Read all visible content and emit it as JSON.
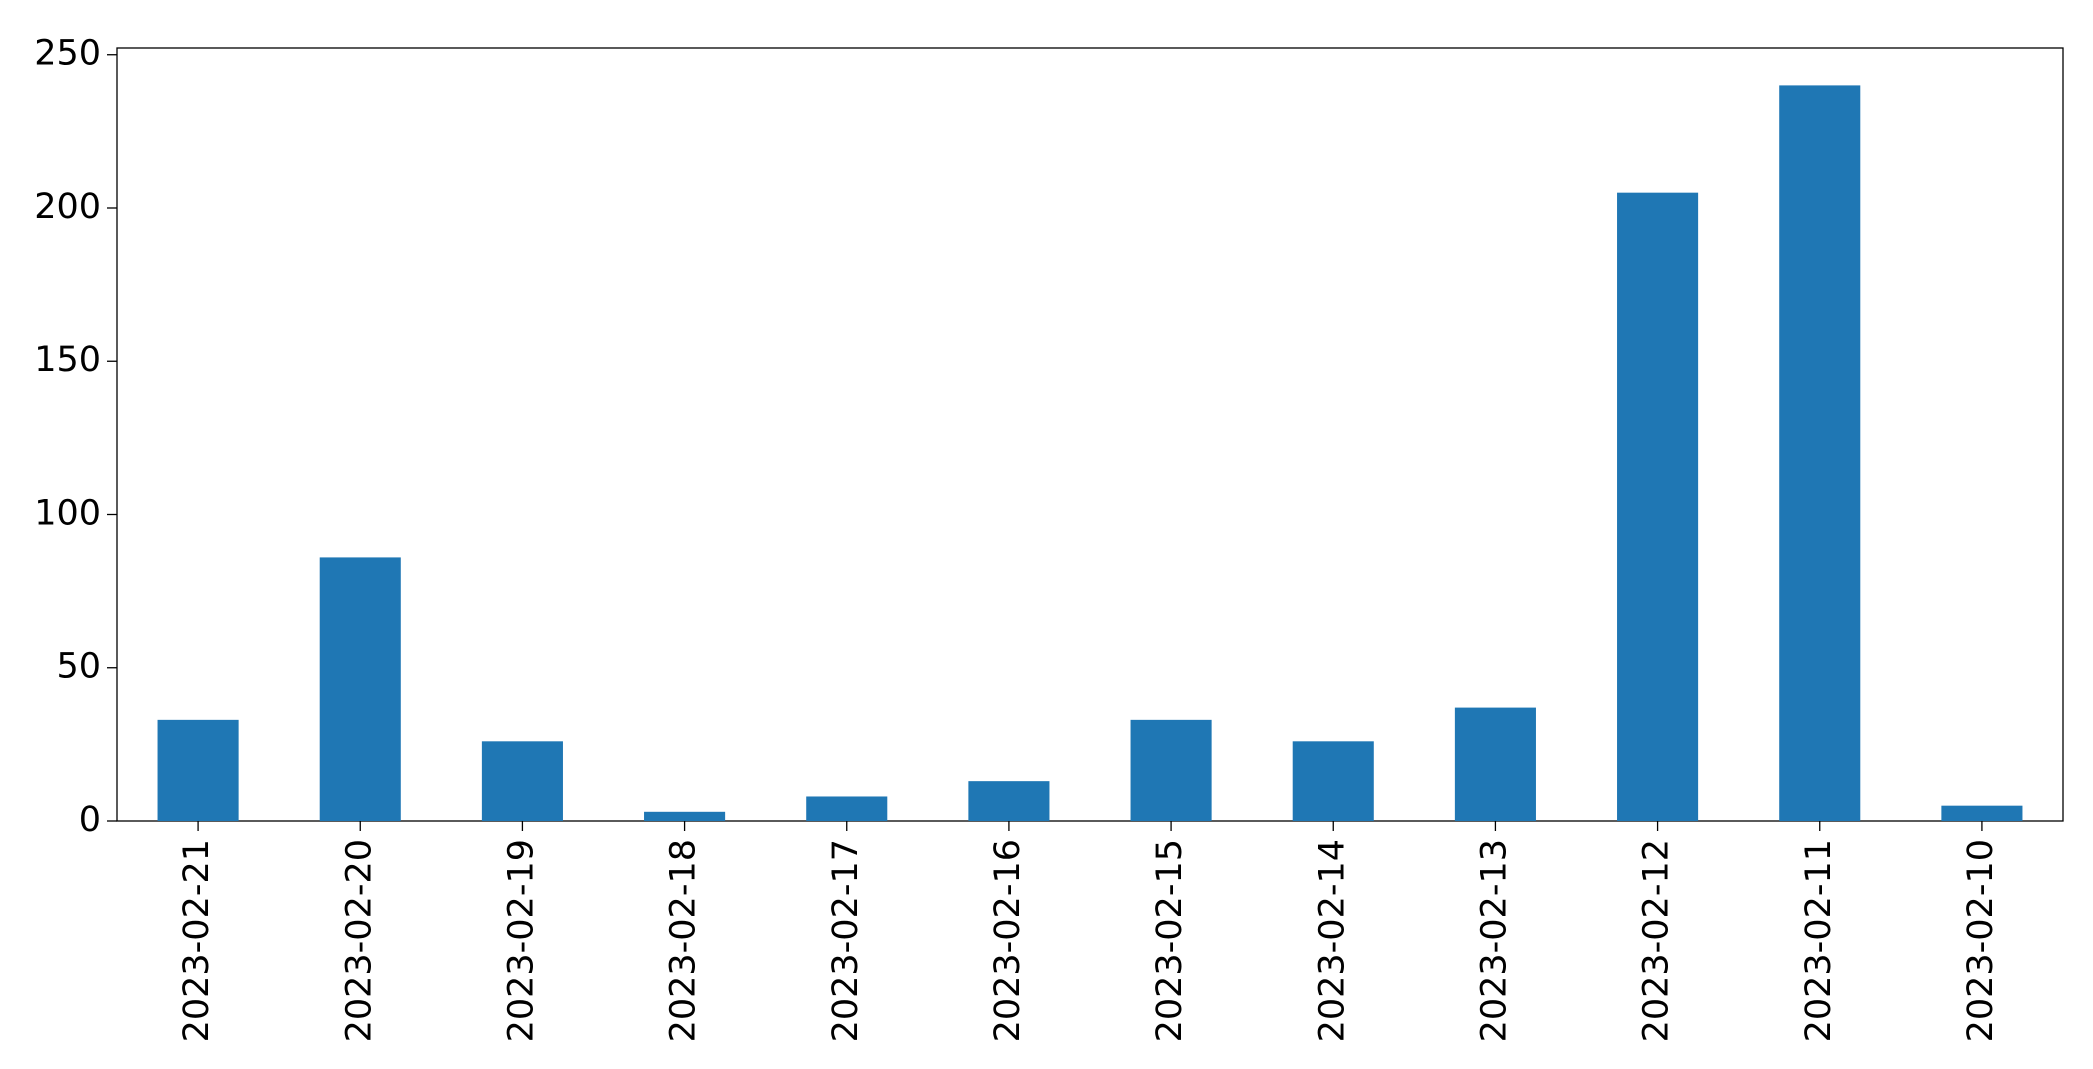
{
  "chart_data": {
    "type": "bar",
    "categories": [
      "2023-02-21",
      "2023-02-20",
      "2023-02-19",
      "2023-02-18",
      "2023-02-17",
      "2023-02-16",
      "2023-02-15",
      "2023-02-14",
      "2023-02-13",
      "2023-02-12",
      "2023-02-11",
      "2023-02-10"
    ],
    "values": [
      33,
      86,
      26,
      3,
      8,
      13,
      33,
      26,
      37,
      205,
      240,
      5
    ],
    "color": "#1f77b4",
    "ylim": [
      0,
      252.2
    ],
    "yticks": [
      0,
      50,
      100,
      150,
      200,
      250
    ],
    "grid": false
  }
}
